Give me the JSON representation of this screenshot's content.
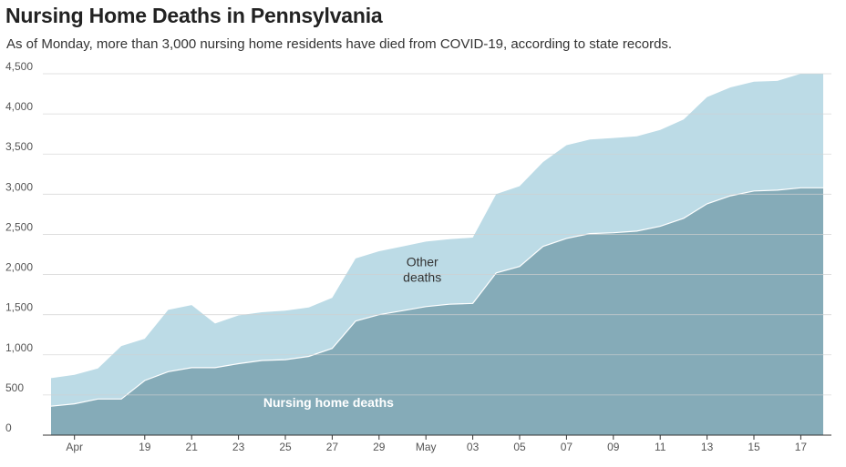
{
  "title": "Nursing Home Deaths in Pennsylvania",
  "subtitle": "As of Monday, more than 3,000 nursing home residents have died from COVID-19, according to state records.",
  "colors": {
    "total_area": "#bcdbe6",
    "nursing_area": "#85abb8",
    "grid": "#d0d0d0",
    "axis": "#333333"
  },
  "chart_data": {
    "type": "area",
    "stacked": true,
    "title": "Nursing Home Deaths in Pennsylvania",
    "x": [
      "Apr 15",
      "Apr 16",
      "Apr 17",
      "Apr 18",
      "Apr 19",
      "Apr 20",
      "Apr 21",
      "Apr 22",
      "Apr 23",
      "Apr 24",
      "Apr 25",
      "Apr 26",
      "Apr 27",
      "Apr 28",
      "Apr 29",
      "Apr 30",
      "May 01",
      "May 02",
      "May 03",
      "May 04",
      "May 05",
      "May 06",
      "May 07",
      "May 08",
      "May 09",
      "May 10",
      "May 11",
      "May 12",
      "May 13",
      "May 14",
      "May 15",
      "May 16",
      "May 17",
      "May 18"
    ],
    "series": [
      {
        "name": "Nursing home deaths",
        "values": [
          360,
          390,
          450,
          450,
          680,
          790,
          840,
          840,
          890,
          930,
          940,
          980,
          1080,
          1420,
          1500,
          1550,
          1600,
          1630,
          1640,
          2020,
          2100,
          2350,
          2450,
          2510,
          2520,
          2540,
          2600,
          2700,
          2880,
          2980,
          3040,
          3050,
          3080,
          3080
        ],
        "color": "#85abb8"
      },
      {
        "name": "Other deaths",
        "values": [
          350,
          360,
          380,
          660,
          520,
          770,
          780,
          550,
          600,
          600,
          610,
          610,
          630,
          780,
          790,
          800,
          810,
          810,
          820,
          980,
          1000,
          1050,
          1160,
          1170,
          1180,
          1180,
          1200,
          1230,
          1330,
          1350,
          1360,
          1360,
          1420,
          1420
        ],
        "color": "#bcdbe6"
      }
    ],
    "x_tick_labels": [
      "Apr",
      "19",
      "21",
      "23",
      "25",
      "27",
      "29",
      "May",
      "03",
      "05",
      "07",
      "09",
      "11",
      "13",
      "15",
      "17"
    ],
    "x_tick_positions": [
      "Apr 16",
      "Apr 19",
      "Apr 21",
      "Apr 23",
      "Apr 25",
      "Apr 27",
      "Apr 29",
      "May 01",
      "May 03",
      "May 05",
      "May 07",
      "May 09",
      "May 11",
      "May 13",
      "May 15",
      "May 17"
    ],
    "y_ticks": [
      0,
      500,
      1000,
      1500,
      2000,
      2500,
      3000,
      3500,
      4000,
      4500
    ],
    "y_tick_labels": [
      "0",
      "500",
      "1,000",
      "1,500",
      "2,000",
      "2,500",
      "3,000",
      "3,500",
      "4,000",
      "4,500"
    ],
    "ylim": [
      0,
      4500
    ],
    "grid": true,
    "annotations": [
      {
        "text": [
          "Other",
          "deaths"
        ],
        "x": "May 01",
        "y": 2100,
        "series": "Other deaths"
      },
      {
        "text": [
          "Nursing home deaths"
        ],
        "x": "Apr 27",
        "y": 350,
        "series": "Nursing home deaths"
      }
    ]
  }
}
